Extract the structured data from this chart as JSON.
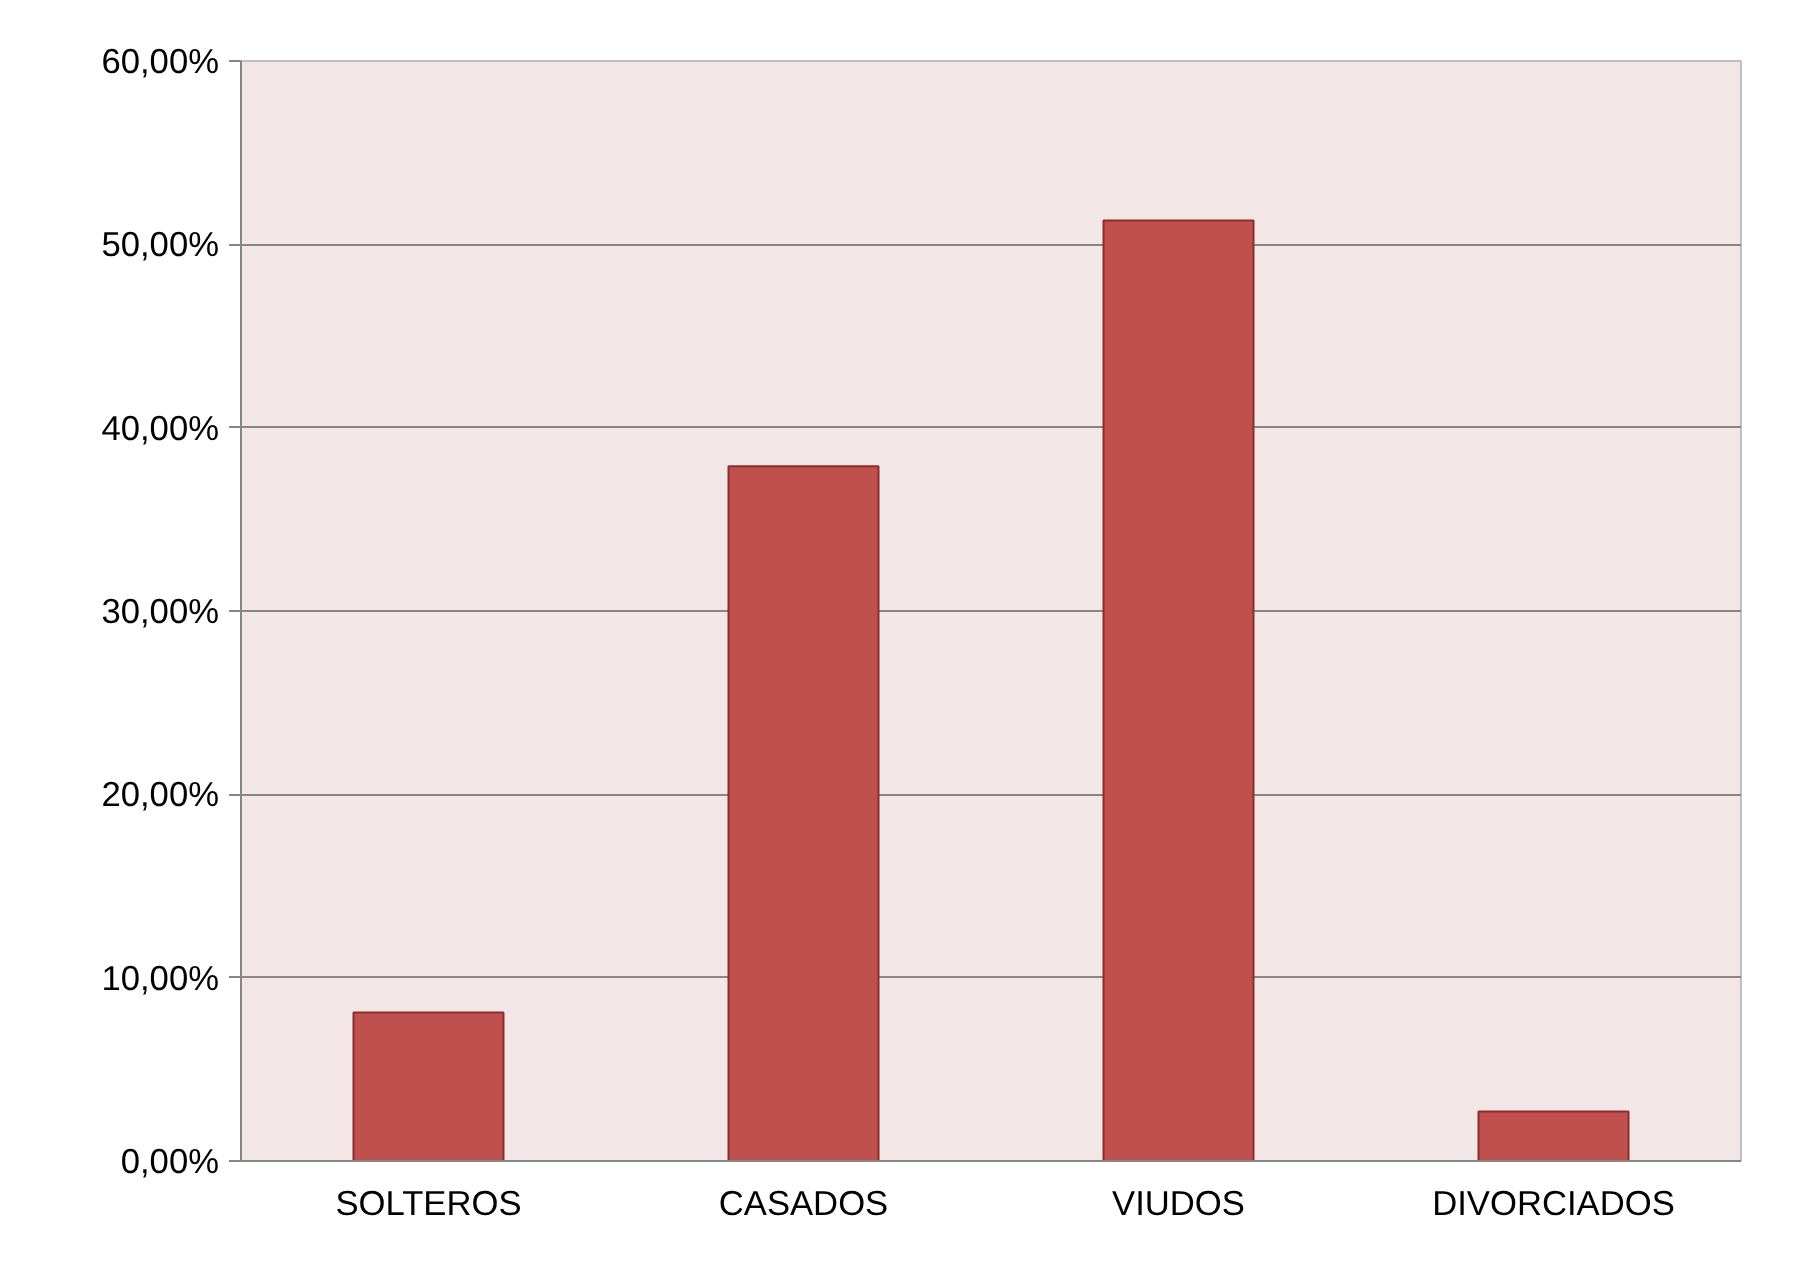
{
  "chart_data": {
    "type": "bar",
    "categories": [
      "SOLTEROS",
      "CASADOS",
      "VIUDOS",
      "DIVORCIADOS"
    ],
    "values": [
      8.1,
      37.9,
      51.3,
      2.7
    ],
    "color": "#c0504d",
    "ylim": [
      0,
      60
    ],
    "yticks": [
      {
        "value": 0,
        "label": "0,00%"
      },
      {
        "value": 10,
        "label": "10,00%"
      },
      {
        "value": 20,
        "label": "20,00%"
      },
      {
        "value": 30,
        "label": "30,00%"
      },
      {
        "value": 40,
        "label": "40,00%"
      },
      {
        "value": 50,
        "label": "50,00%"
      },
      {
        "value": 60,
        "label": "60,00%"
      }
    ],
    "grid": "y"
  }
}
